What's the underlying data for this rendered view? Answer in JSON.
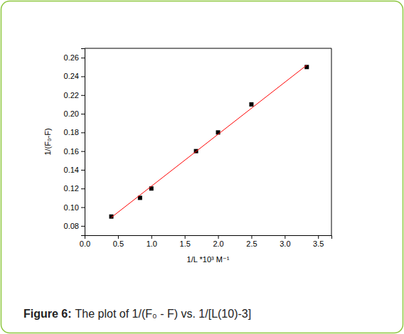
{
  "chart_data": {
    "type": "scatter",
    "caption_label": "Figure 6:",
    "caption": "The plot of 1/(F₀ - F) vs. 1/[L(10)-3]",
    "x_label": "1/L *10³ M⁻¹",
    "y_label": "1/(F₀-F)",
    "xlim": [
      0,
      3.7
    ],
    "ylim": [
      0.07,
      0.27
    ],
    "xticks": [
      {
        "value": 0,
        "label": "0.0"
      },
      0.5,
      {
        "value": 1,
        "label": "1.0"
      },
      1.5,
      {
        "value": 2,
        "label": "2.0"
      },
      2.5,
      {
        "value": 3,
        "label": "3.0"
      },
      3.5
    ],
    "yticks": [
      0.08,
      {
        "value": 0.1,
        "label": "0.10"
      },
      0.12,
      0.14,
      0.16,
      0.18,
      {
        "value": 0.2,
        "label": "0.20"
      },
      0.22,
      0.24,
      0.26
    ],
    "series": [
      {
        "type": "scatter",
        "color": "#000000",
        "marker": "square",
        "x": [
          0.4,
          0.83,
          1.0,
          1.67,
          2.0,
          2.5,
          3.33
        ],
        "values": [
          0.09,
          0.11,
          0.12,
          0.16,
          0.18,
          0.21,
          0.25
        ]
      },
      {
        "type": "line",
        "color": "#ff0000",
        "line_style": "solid",
        "x": [
          0.4,
          3.33
        ],
        "values": [
          0.089,
          0.252
        ]
      }
    ]
  }
}
